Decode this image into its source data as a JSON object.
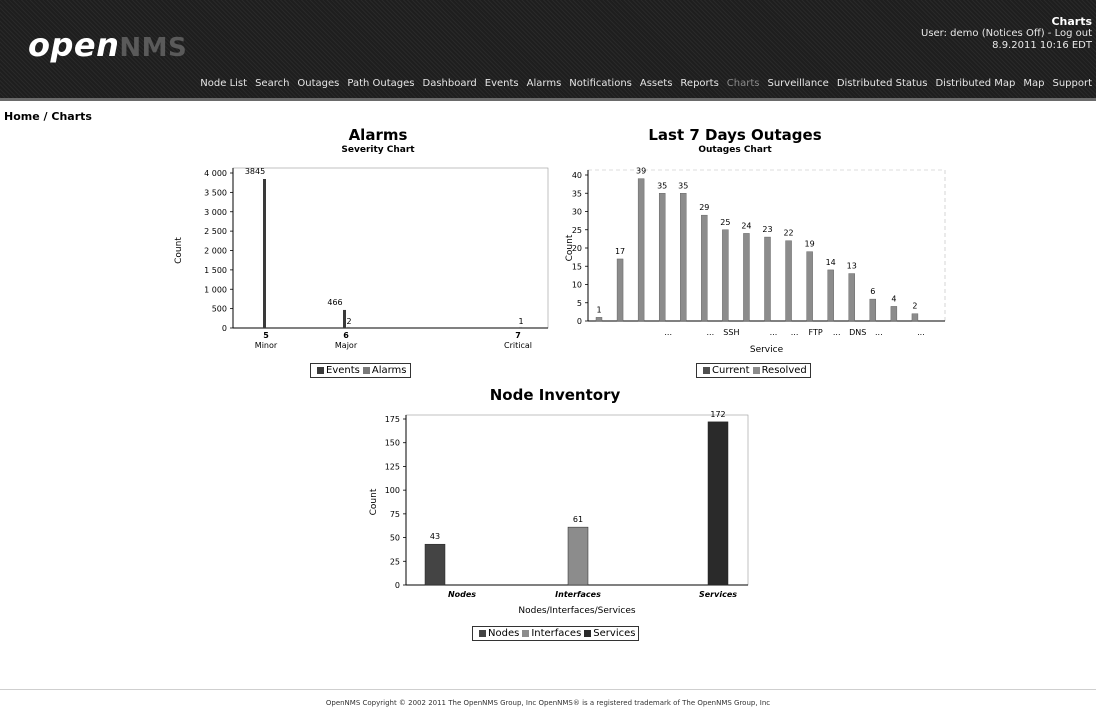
{
  "header": {
    "logo_main": "open",
    "logo_dim": "NMS",
    "page_title": "Charts",
    "user_line": "User: demo (Notices Off) - Log out",
    "date_line": "8.9.2011  10:16 EDT",
    "nav": [
      "Node List",
      "Search",
      "Outages",
      "Path Outages",
      "Dashboard",
      "Events",
      "Alarms",
      "Notifications",
      "Assets",
      "Reports",
      "Charts",
      "Surveillance",
      "Distributed Status",
      "Distributed Map",
      "Map",
      "Support"
    ],
    "current_nav": "Charts"
  },
  "breadcrumb": {
    "home": "Home",
    "sep": " / ",
    "current": "Charts"
  },
  "alarms": {
    "title": "Alarms",
    "subtitle": "Severity Chart",
    "legend": [
      "Events",
      "Alarms"
    ]
  },
  "outages": {
    "title": "Last 7 Days Outages",
    "subtitle": "Outages Chart",
    "legend": [
      "Current",
      "Resolved"
    ]
  },
  "inventory": {
    "title": "Node Inventory",
    "legend": [
      "Nodes",
      "Interfaces",
      "Services"
    ]
  },
  "footer": {
    "text": "OpenNMS Copyright © 2002 2011 The OpenNMS Group, Inc  OpenNMS® is a registered trademark of The OpenNMS Group, Inc"
  },
  "chart_data": [
    {
      "type": "bar",
      "title": "Alarms",
      "subtitle": "Severity Chart",
      "ylabel": "Count",
      "xlabel": "",
      "ylim": [
        0,
        4000
      ],
      "yticks": [
        "0",
        "500",
        "1 000",
        "1 500",
        "2 000",
        "2 500",
        "3 000",
        "3 500",
        "4 000"
      ],
      "categories": [
        "5\nMinor",
        "6\nMajor",
        "7\nCritical"
      ],
      "category_numbers": [
        "5",
        "6",
        "7"
      ],
      "category_names": [
        "Minor",
        "Major",
        "Critical"
      ],
      "series": [
        {
          "name": "Events",
          "values": [
            3845,
            466,
            0
          ]
        },
        {
          "name": "Alarms",
          "values": [
            0,
            2,
            1
          ]
        }
      ],
      "data_labels": [
        "3845",
        "2",
        "466",
        "1"
      ],
      "legend_position": "bottom",
      "colors": {
        "Events": "#3a3a3a",
        "Alarms": "#7a7a7a"
      }
    },
    {
      "type": "bar",
      "title": "Last 7 Days Outages",
      "subtitle": "Outages Chart",
      "ylabel": "Count",
      "xlabel": "Service",
      "ylim": [
        0,
        40
      ],
      "yticks": [
        "0",
        "5",
        "10",
        "15",
        "20",
        "25",
        "30",
        "35",
        "40"
      ],
      "x_tick_labels": [
        "",
        "",
        "",
        "...",
        "",
        "...",
        "SSH",
        "",
        "...",
        "...",
        "FTP",
        "...",
        "DNS",
        "...",
        "",
        "..."
      ],
      "series": [
        {
          "name": "Current",
          "values": [
            0,
            0,
            0,
            0,
            0,
            0,
            0,
            0,
            0,
            0,
            0,
            0,
            0,
            0,
            0,
            0
          ]
        },
        {
          "name": "Resolved",
          "values": [
            1,
            17,
            39,
            35,
            35,
            29,
            25,
            24,
            23,
            22,
            19,
            14,
            13,
            6,
            4,
            2
          ]
        }
      ],
      "legend_position": "bottom",
      "colors": {
        "Current": "#505050",
        "Resolved": "#8c8c8c"
      }
    },
    {
      "type": "bar",
      "title": "Node Inventory",
      "ylabel": "Count",
      "xlabel": "Nodes/Interfaces/Services",
      "ylim": [
        0,
        175
      ],
      "yticks": [
        "0",
        "25",
        "50",
        "75",
        "100",
        "125",
        "150",
        "175"
      ],
      "categories": [
        "Nodes",
        "Interfaces",
        "Services"
      ],
      "values": [
        43,
        61,
        172
      ],
      "legend_position": "bottom",
      "colors": {
        "Nodes": "#444444",
        "Interfaces": "#8c8c8c",
        "Services": "#2a2a2a"
      }
    }
  ]
}
